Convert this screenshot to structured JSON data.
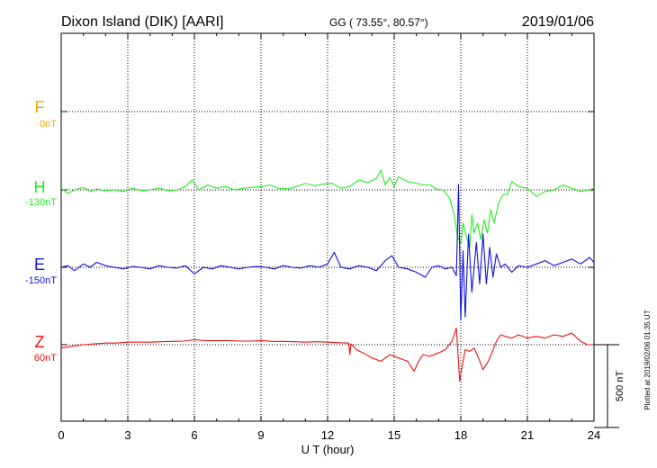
{
  "header": {
    "station": "Dixon Island (DIK)  [AARI]",
    "coords": "GG ( 73.55°,  80.57°)",
    "date": "2019/01/06"
  },
  "side_note": "Plotted at 2019/02/06 01:35 UT",
  "scale_bar": {
    "label": "500 nT",
    "value_nT": 500
  },
  "chart_data": {
    "type": "line",
    "xlabel": "U T (hour)",
    "xlim": [
      0,
      24
    ],
    "xticks": [
      0,
      3,
      6,
      9,
      12,
      15,
      18,
      21,
      24
    ],
    "grid": true,
    "units": "nT",
    "series": [
      {
        "name": "F",
        "baseline_label": "0nT",
        "color": "#f5a800",
        "x": [],
        "y": []
      },
      {
        "name": "H",
        "baseline_label": "-130nT",
        "color": "#22ee22",
        "x": [
          0,
          0.3,
          0.6,
          1,
          1.3,
          1.6,
          2,
          2.4,
          2.8,
          3.2,
          3.6,
          4,
          4.4,
          4.8,
          5.2,
          5.6,
          5.9,
          6.2,
          6.6,
          7,
          7.4,
          7.8,
          8.2,
          8.6,
          9,
          9.4,
          9.8,
          10.2,
          10.6,
          11,
          11.4,
          11.8,
          12.2,
          12.6,
          13,
          13.4,
          13.8,
          14.2,
          14.4,
          14.6,
          14.8,
          15,
          15.2,
          15.6,
          16,
          16.3,
          16.6,
          16.9,
          17.2,
          17.5,
          17.7,
          17.85,
          18,
          18.1,
          18.25,
          18.4,
          18.5,
          18.6,
          18.75,
          18.9,
          19.05,
          19.2,
          19.35,
          19.5,
          19.7,
          19.9,
          20.1,
          20.3,
          20.6,
          21,
          21.4,
          21.8,
          22.2,
          22.6,
          23,
          23.4,
          23.8,
          24
        ],
        "y": [
          10,
          -20,
          0,
          15,
          -10,
          5,
          -5,
          0,
          -10,
          10,
          -5,
          0,
          10,
          -5,
          0,
          20,
          60,
          0,
          30,
          10,
          20,
          0,
          10,
          15,
          20,
          30,
          10,
          5,
          20,
          40,
          25,
          35,
          40,
          10,
          20,
          60,
          45,
          70,
          120,
          30,
          75,
          20,
          80,
          50,
          40,
          30,
          30,
          5,
          0,
          -50,
          -150,
          -280,
          -330,
          -200,
          -280,
          -350,
          -150,
          -260,
          -200,
          -300,
          -180,
          -260,
          -120,
          -200,
          -80,
          -30,
          -30,
          50,
          20,
          10,
          -40,
          -10,
          0,
          30,
          10,
          -10,
          0,
          10
        ]
      },
      {
        "name": "E",
        "baseline_label": "-150nT",
        "color": "#1010dd",
        "x": [
          0,
          0.3,
          0.6,
          1,
          1.3,
          1.6,
          2,
          2.4,
          2.8,
          3.2,
          3.6,
          4,
          4.4,
          4.8,
          5.2,
          5.6,
          6,
          6.4,
          6.8,
          7.2,
          7.6,
          8,
          8.4,
          8.8,
          9.2,
          9.6,
          10,
          10.4,
          10.8,
          11.2,
          11.6,
          12,
          12.3,
          12.6,
          13,
          13.4,
          13.8,
          14.2,
          14.6,
          14.9,
          15.2,
          15.6,
          16,
          16.4,
          16.7,
          17,
          17.3,
          17.6,
          17.8,
          17.9,
          18,
          18.1,
          18.2,
          18.35,
          18.5,
          18.7,
          18.85,
          19,
          19.15,
          19.3,
          19.45,
          19.6,
          19.8,
          20,
          20.3,
          20.6,
          21,
          21.4,
          21.8,
          22.2,
          22.6,
          23,
          23.4,
          23.8,
          24
        ],
        "y": [
          0,
          10,
          -20,
          20,
          0,
          30,
          10,
          0,
          -10,
          5,
          0,
          -10,
          10,
          0,
          -5,
          10,
          -40,
          0,
          -10,
          10,
          0,
          -10,
          0,
          5,
          0,
          -10,
          10,
          0,
          -5,
          10,
          0,
          20,
          90,
          0,
          -10,
          10,
          0,
          -20,
          40,
          70,
          0,
          -10,
          -30,
          -60,
          0,
          10,
          -10,
          0,
          -50,
          500,
          -320,
          100,
          -300,
          200,
          -150,
          150,
          -100,
          200,
          -100,
          120,
          -60,
          80,
          0,
          20,
          -30,
          10,
          0,
          20,
          40,
          10,
          30,
          50,
          20,
          60,
          30
        ]
      },
      {
        "name": "Z",
        "baseline_label": "60nT",
        "color": "#ee1111",
        "x": [
          0,
          0.5,
          1,
          1.5,
          2,
          2.5,
          3,
          3.5,
          4,
          4.5,
          5,
          5.5,
          6,
          6.5,
          7,
          7.5,
          8,
          8.5,
          9,
          9.5,
          10,
          10.5,
          11,
          11.5,
          12,
          12.5,
          12.95,
          13,
          13.05,
          13.3,
          13.6,
          14,
          14.4,
          14.8,
          15.2,
          15.6,
          15.9,
          16.1,
          16.3,
          16.6,
          17,
          17.3,
          17.6,
          17.8,
          17.95,
          18.05,
          18.2,
          18.4,
          18.6,
          18.8,
          19,
          19.2,
          19.4,
          19.6,
          19.8,
          20,
          20.3,
          20.6,
          21,
          21.4,
          21.8,
          22.2,
          22.6,
          23,
          23.4,
          23.7,
          24
        ],
        "y": [
          -20,
          -10,
          0,
          5,
          10,
          10,
          15,
          15,
          15,
          18,
          20,
          22,
          30,
          25,
          25,
          25,
          22,
          22,
          25,
          20,
          20,
          18,
          15,
          18,
          15,
          12,
          10,
          -60,
          5,
          -30,
          -50,
          -80,
          -100,
          -60,
          -80,
          -100,
          -160,
          -100,
          -60,
          -70,
          -50,
          -30,
          20,
          100,
          -220,
          -140,
          -30,
          -40,
          -20,
          -80,
          -150,
          -110,
          -50,
          20,
          60,
          50,
          40,
          60,
          40,
          50,
          40,
          60,
          50,
          70,
          20,
          0,
          0
        ]
      }
    ]
  }
}
